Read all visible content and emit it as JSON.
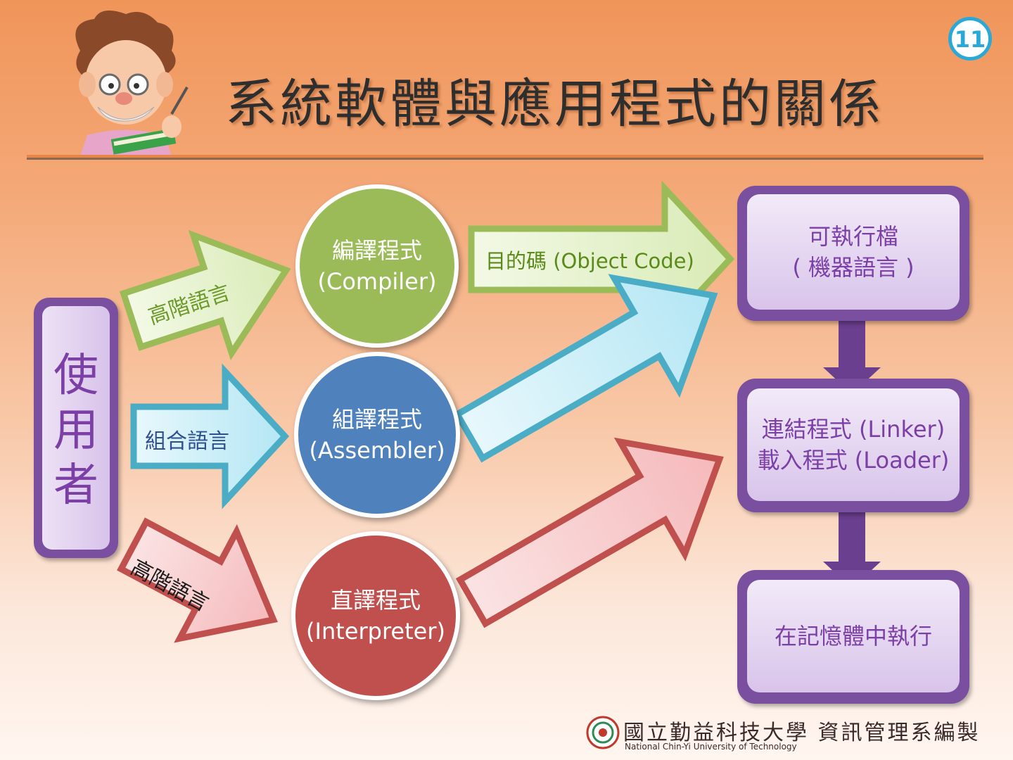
{
  "slide": {
    "title": "系統軟體與應用程式的關係",
    "page_number": "11"
  },
  "user": {
    "label_chars": [
      "使",
      "用",
      "者"
    ]
  },
  "arrows": {
    "high_level_top": "高階語言",
    "assembly": "組合語言",
    "high_level_bottom": "高階語言",
    "object_code": "目的碼 (Object Code)"
  },
  "translators": {
    "compiler": {
      "line1": "編譯程式",
      "line2": "(Compiler)"
    },
    "assembler": {
      "line1": "組譯程式",
      "line2": "(Assembler)"
    },
    "interpreter": {
      "line1": "直譯程式",
      "line2": "(Interpreter)"
    }
  },
  "stages": {
    "executable": {
      "line1": "可執行檔",
      "line2": "( 機器語言 )"
    },
    "linker": {
      "line1": "連結程式 (Linker)",
      "line2": "載入程式 (Loader)"
    },
    "run": {
      "line1": "在記憶體中執行"
    }
  },
  "footer": {
    "text": "國立勤益科技大學 資訊管理系編製",
    "subtext": "National Chin-Yi University of Technology"
  },
  "colors": {
    "green": "#9bbb59",
    "blue": "#4f81bd",
    "red": "#c0504d",
    "purple": "#7b4f9f",
    "teal_badge": "#2aa8d8"
  }
}
